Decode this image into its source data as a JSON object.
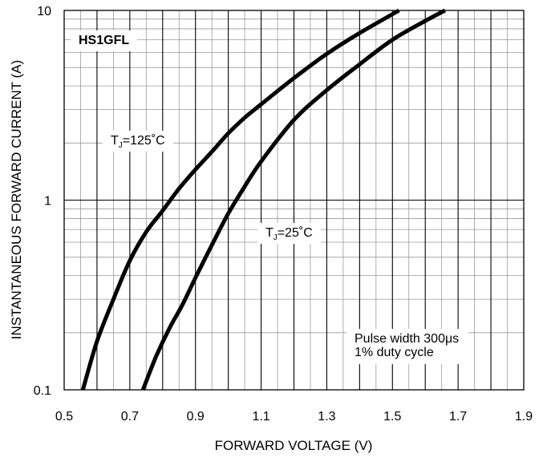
{
  "chart_data": {
    "type": "line",
    "title": "",
    "xlabel": "FORWARD VOLTAGE (V)",
    "ylabel": "INSTANTANEOUS FORWARD CURRENT (A)",
    "xlim": [
      0.5,
      1.9
    ],
    "ylim": [
      0.1,
      10
    ],
    "yscale": "log",
    "grid": true,
    "x_ticks": [
      "0.5",
      "0.7",
      "0.9",
      "1.1",
      "1.3",
      "1.5",
      "1.7",
      "1.9"
    ],
    "y_ticks": [
      "0.1",
      "1",
      "10"
    ],
    "series": [
      {
        "points": [
          [
            0.557,
            0.1
          ],
          [
            0.6,
            0.18
          ],
          [
            0.65,
            0.3
          ],
          [
            0.7,
            0.48
          ],
          [
            0.75,
            0.68
          ],
          [
            0.8,
            0.88
          ],
          [
            0.85,
            1.15
          ],
          [
            0.9,
            1.45
          ],
          [
            0.95,
            1.8
          ],
          [
            1.0,
            2.25
          ],
          [
            1.05,
            2.72
          ],
          [
            1.1,
            3.2
          ],
          [
            1.2,
            4.4
          ],
          [
            1.3,
            5.9
          ],
          [
            1.4,
            7.6
          ],
          [
            1.52,
            10
          ]
        ]
      },
      {
        "points": [
          [
            0.74,
            0.1
          ],
          [
            0.78,
            0.15
          ],
          [
            0.82,
            0.21
          ],
          [
            0.86,
            0.28
          ],
          [
            0.9,
            0.39
          ],
          [
            0.95,
            0.58
          ],
          [
            1.0,
            0.85
          ],
          [
            1.05,
            1.18
          ],
          [
            1.1,
            1.6
          ],
          [
            1.2,
            2.65
          ],
          [
            1.3,
            3.8
          ],
          [
            1.4,
            5.2
          ],
          [
            1.5,
            7.0
          ],
          [
            1.6,
            8.8
          ],
          [
            1.66,
            10
          ]
        ]
      }
    ],
    "annotations": {
      "model": "HS1GFL",
      "t125_main": "T",
      "t125_sub": "J",
      "t125_rest": "=125˚C",
      "t25_main": "T",
      "t25_sub": "J",
      "t25_rest": "=25˚C",
      "pulse_line1": "Pulse width 300μs",
      "pulse_line2": "1% duty cycle"
    }
  }
}
